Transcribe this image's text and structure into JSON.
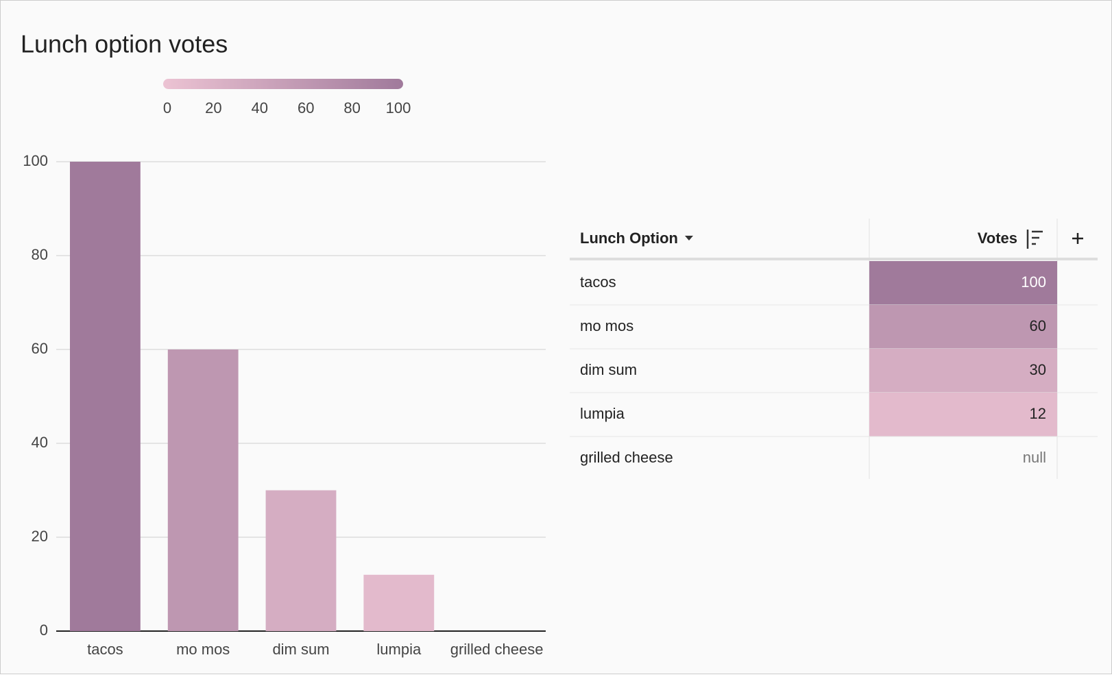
{
  "chart_data": {
    "type": "bar",
    "title": "Lunch option votes",
    "categories": [
      "tacos",
      "mo mos",
      "dim sum",
      "lumpia",
      "grilled cheese"
    ],
    "values": [
      100,
      60,
      30,
      12,
      null
    ],
    "ylim": [
      0,
      100
    ],
    "yticks": [
      0,
      20,
      40,
      60,
      80,
      100
    ],
    "grid": true,
    "color_scale": {
      "colors": [
        "#ecc3d3",
        "#a07a9b"
      ],
      "range": [
        0,
        100
      ],
      "ticks": [
        0,
        20,
        40,
        60,
        80,
        100
      ]
    }
  },
  "table": {
    "columns": [
      "Lunch Option",
      "Votes"
    ],
    "null_label": "null"
  }
}
